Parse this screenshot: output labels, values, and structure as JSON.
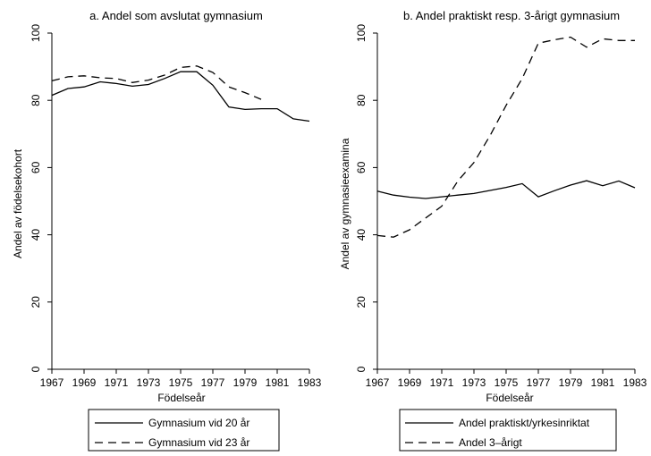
{
  "chart_data": [
    {
      "type": "line",
      "title": "a. Andel som avslutat gymnasium",
      "xlabel": "Födelseår",
      "ylabel": "Andel av födelsekohort",
      "xlim": [
        1967,
        1983
      ],
      "ylim": [
        0,
        100
      ],
      "xticks": [
        1967,
        1969,
        1971,
        1973,
        1975,
        1977,
        1979,
        1981,
        1983
      ],
      "yticks": [
        0,
        20,
        40,
        60,
        80,
        100
      ],
      "grid": false,
      "legend": "below",
      "series": [
        {
          "name": "Gymnasium vid 20 år",
          "style": "solid",
          "x": [
            1967,
            1968,
            1969,
            1970,
            1971,
            1972,
            1973,
            1974,
            1975,
            1976,
            1977,
            1978,
            1979,
            1980,
            1981,
            1982,
            1983
          ],
          "y": [
            81.5,
            83.5,
            84,
            85.5,
            85,
            84.2,
            84.7,
            86.5,
            88.5,
            88.5,
            84.5,
            78,
            77.3,
            77.5,
            77.5,
            74.5,
            73.8
          ]
        },
        {
          "name": "Gymnasium vid 23 år",
          "style": "dashed",
          "x": [
            1967,
            1968,
            1969,
            1970,
            1971,
            1972,
            1973,
            1974,
            1975,
            1976,
            1977,
            1978,
            1979,
            1980
          ],
          "y": [
            85.8,
            87,
            87.3,
            86.7,
            86.5,
            85.3,
            86,
            87.5,
            89.8,
            90.2,
            88.3,
            84,
            82.3,
            80.3
          ]
        }
      ]
    },
    {
      "type": "line",
      "title": "b. Andel praktiskt resp. 3-årigt gymnasium",
      "xlabel": "Födelseår",
      "ylabel": "Andel av gymnasieexamina",
      "xlim": [
        1967,
        1983
      ],
      "ylim": [
        0,
        100
      ],
      "xticks": [
        1967,
        1969,
        1971,
        1973,
        1975,
        1977,
        1979,
        1981,
        1983
      ],
      "yticks": [
        0,
        20,
        40,
        60,
        80,
        100
      ],
      "grid": false,
      "legend": "below",
      "series": [
        {
          "name": "Andel praktiskt/yrkesinriktat",
          "style": "solid",
          "x": [
            1967,
            1968,
            1969,
            1970,
            1971,
            1972,
            1973,
            1974,
            1975,
            1976,
            1977,
            1978,
            1979,
            1980,
            1981,
            1982,
            1983
          ],
          "y": [
            53,
            51.8,
            51.2,
            50.8,
            51.3,
            51.8,
            52.3,
            53.2,
            54.1,
            55.2,
            51.3,
            53.1,
            54.8,
            56.1,
            54.6,
            56,
            54
          ]
        },
        {
          "name": "Andel 3–årigt",
          "style": "dashed",
          "x": [
            1967,
            1968,
            1969,
            1970,
            1971,
            1972,
            1973,
            1974,
            1975,
            1976,
            1977,
            1978,
            1979,
            1980,
            1981,
            1982,
            1983
          ],
          "y": [
            39.8,
            39.3,
            41.5,
            45,
            48.5,
            56,
            61.5,
            69.5,
            78.5,
            86.5,
            97,
            98,
            98.8,
            95.8,
            98.3,
            97.8,
            97.8
          ]
        }
      ]
    }
  ]
}
